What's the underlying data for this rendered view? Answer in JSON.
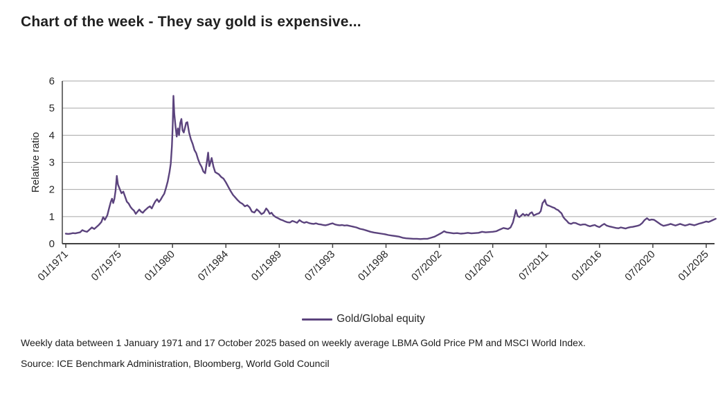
{
  "title": "Chart of the week - They say gold is expensive...",
  "legend": {
    "label": "Gold/Global equity"
  },
  "footnotes": {
    "line1": "Weekly data between 1 January 1971 and 17 October 2025 based on weekly average LBMA Gold Price PM and MSCI World Index.",
    "line2": "Source: ICE Benchmark Administration, Bloomberg, World Gold Council"
  },
  "colors": {
    "line": "#5b437d",
    "grid": "#a6a6a6",
    "axis": "#404040",
    "text": "#262626"
  },
  "chart_data": {
    "type": "line",
    "title": "Chart of the week - They say gold is expensive...",
    "xlabel": "",
    "ylabel": "Relative ratio",
    "ylim": [
      0,
      6
    ],
    "yticks": [
      0,
      1,
      2,
      3,
      4,
      5,
      6
    ],
    "xlim": [
      1971.0,
      2025.9
    ],
    "grid": "horizontal-only",
    "legend_position": "bottom-center",
    "x_ticks": [
      {
        "pos": 1971.0,
        "label": "01/1971"
      },
      {
        "pos": 1975.5,
        "label": "07/1975"
      },
      {
        "pos": 1980.0,
        "label": "01/1980"
      },
      {
        "pos": 1984.5,
        "label": "07/1984"
      },
      {
        "pos": 1989.0,
        "label": "01/1989"
      },
      {
        "pos": 1993.5,
        "label": "07/1993"
      },
      {
        "pos": 1998.0,
        "label": "01/1998"
      },
      {
        "pos": 2002.5,
        "label": "07/2002"
      },
      {
        "pos": 2007.0,
        "label": "01/2007"
      },
      {
        "pos": 2011.5,
        "label": "07/2011"
      },
      {
        "pos": 2016.0,
        "label": "01/2016"
      },
      {
        "pos": 2020.5,
        "label": "07/2020"
      },
      {
        "pos": 2025.0,
        "label": "01/2025"
      }
    ],
    "series": [
      {
        "name": "Gold/Global equity",
        "points": [
          [
            1971.0,
            0.37
          ],
          [
            1971.2,
            0.36
          ],
          [
            1971.4,
            0.37
          ],
          [
            1971.6,
            0.39
          ],
          [
            1971.8,
            0.38
          ],
          [
            1972.0,
            0.4
          ],
          [
            1972.2,
            0.42
          ],
          [
            1972.4,
            0.5
          ],
          [
            1972.6,
            0.46
          ],
          [
            1972.8,
            0.44
          ],
          [
            1973.0,
            0.52
          ],
          [
            1973.2,
            0.6
          ],
          [
            1973.4,
            0.54
          ],
          [
            1973.6,
            0.62
          ],
          [
            1973.8,
            0.7
          ],
          [
            1974.0,
            0.8
          ],
          [
            1974.15,
            0.98
          ],
          [
            1974.3,
            0.88
          ],
          [
            1974.5,
            1.05
          ],
          [
            1974.65,
            1.3
          ],
          [
            1974.8,
            1.55
          ],
          [
            1974.9,
            1.66
          ],
          [
            1975.0,
            1.5
          ],
          [
            1975.1,
            1.65
          ],
          [
            1975.2,
            1.95
          ],
          [
            1975.3,
            2.5
          ],
          [
            1975.4,
            2.18
          ],
          [
            1975.55,
            2.02
          ],
          [
            1975.7,
            1.86
          ],
          [
            1975.85,
            1.92
          ],
          [
            1976.0,
            1.74
          ],
          [
            1976.15,
            1.55
          ],
          [
            1976.3,
            1.48
          ],
          [
            1976.45,
            1.36
          ],
          [
            1976.6,
            1.28
          ],
          [
            1976.75,
            1.22
          ],
          [
            1976.9,
            1.1
          ],
          [
            1977.05,
            1.18
          ],
          [
            1977.2,
            1.26
          ],
          [
            1977.35,
            1.18
          ],
          [
            1977.5,
            1.14
          ],
          [
            1977.65,
            1.22
          ],
          [
            1977.8,
            1.28
          ],
          [
            1977.95,
            1.34
          ],
          [
            1978.1,
            1.38
          ],
          [
            1978.25,
            1.3
          ],
          [
            1978.4,
            1.44
          ],
          [
            1978.55,
            1.56
          ],
          [
            1978.7,
            1.64
          ],
          [
            1978.85,
            1.54
          ],
          [
            1979.0,
            1.62
          ],
          [
            1979.15,
            1.74
          ],
          [
            1979.3,
            1.84
          ],
          [
            1979.45,
            2.05
          ],
          [
            1979.6,
            2.3
          ],
          [
            1979.75,
            2.65
          ],
          [
            1979.85,
            2.95
          ],
          [
            1979.95,
            3.6
          ],
          [
            1980.02,
            4.4
          ],
          [
            1980.08,
            5.45
          ],
          [
            1980.15,
            4.8
          ],
          [
            1980.25,
            4.35
          ],
          [
            1980.35,
            3.95
          ],
          [
            1980.45,
            4.25
          ],
          [
            1980.55,
            4.0
          ],
          [
            1980.65,
            4.45
          ],
          [
            1980.75,
            4.6
          ],
          [
            1980.85,
            4.18
          ],
          [
            1980.95,
            4.1
          ],
          [
            1981.05,
            4.28
          ],
          [
            1981.15,
            4.46
          ],
          [
            1981.25,
            4.48
          ],
          [
            1981.4,
            4.1
          ],
          [
            1981.55,
            3.85
          ],
          [
            1981.7,
            3.68
          ],
          [
            1981.85,
            3.45
          ],
          [
            1982.0,
            3.34
          ],
          [
            1982.15,
            3.12
          ],
          [
            1982.3,
            2.95
          ],
          [
            1982.45,
            2.84
          ],
          [
            1982.6,
            2.66
          ],
          [
            1982.75,
            2.6
          ],
          [
            1982.9,
            3.02
          ],
          [
            1983.0,
            3.36
          ],
          [
            1983.1,
            2.86
          ],
          [
            1983.2,
            3.0
          ],
          [
            1983.3,
            3.16
          ],
          [
            1983.45,
            2.84
          ],
          [
            1983.6,
            2.64
          ],
          [
            1983.75,
            2.6
          ],
          [
            1983.9,
            2.56
          ],
          [
            1984.1,
            2.46
          ],
          [
            1984.3,
            2.4
          ],
          [
            1984.5,
            2.26
          ],
          [
            1984.7,
            2.1
          ],
          [
            1984.9,
            1.94
          ],
          [
            1985.1,
            1.8
          ],
          [
            1985.3,
            1.7
          ],
          [
            1985.5,
            1.6
          ],
          [
            1985.7,
            1.52
          ],
          [
            1985.9,
            1.47
          ],
          [
            1986.1,
            1.38
          ],
          [
            1986.3,
            1.42
          ],
          [
            1986.5,
            1.34
          ],
          [
            1986.7,
            1.18
          ],
          [
            1986.9,
            1.15
          ],
          [
            1987.1,
            1.27
          ],
          [
            1987.3,
            1.19
          ],
          [
            1987.5,
            1.09
          ],
          [
            1987.7,
            1.14
          ],
          [
            1987.9,
            1.3
          ],
          [
            1988.05,
            1.22
          ],
          [
            1988.2,
            1.1
          ],
          [
            1988.35,
            1.14
          ],
          [
            1988.5,
            1.05
          ],
          [
            1988.7,
            0.98
          ],
          [
            1988.9,
            0.94
          ],
          [
            1989.1,
            0.89
          ],
          [
            1989.3,
            0.86
          ],
          [
            1989.5,
            0.82
          ],
          [
            1989.7,
            0.79
          ],
          [
            1989.9,
            0.78
          ],
          [
            1990.1,
            0.84
          ],
          [
            1990.3,
            0.81
          ],
          [
            1990.5,
            0.77
          ],
          [
            1990.7,
            0.87
          ],
          [
            1990.9,
            0.81
          ],
          [
            1991.1,
            0.77
          ],
          [
            1991.3,
            0.8
          ],
          [
            1991.5,
            0.76
          ],
          [
            1991.7,
            0.74
          ],
          [
            1991.9,
            0.73
          ],
          [
            1992.1,
            0.75
          ],
          [
            1992.3,
            0.72
          ],
          [
            1992.5,
            0.71
          ],
          [
            1992.7,
            0.69
          ],
          [
            1992.9,
            0.68
          ],
          [
            1993.1,
            0.7
          ],
          [
            1993.3,
            0.73
          ],
          [
            1993.5,
            0.75
          ],
          [
            1993.7,
            0.71
          ],
          [
            1993.9,
            0.69
          ],
          [
            1994.1,
            0.68
          ],
          [
            1994.3,
            0.69
          ],
          [
            1994.5,
            0.67
          ],
          [
            1994.7,
            0.68
          ],
          [
            1994.9,
            0.66
          ],
          [
            1995.2,
            0.63
          ],
          [
            1995.5,
            0.6
          ],
          [
            1995.8,
            0.55
          ],
          [
            1996.1,
            0.52
          ],
          [
            1996.4,
            0.48
          ],
          [
            1996.7,
            0.44
          ],
          [
            1997.0,
            0.41
          ],
          [
            1997.3,
            0.39
          ],
          [
            1997.6,
            0.37
          ],
          [
            1997.9,
            0.35
          ],
          [
            1998.2,
            0.32
          ],
          [
            1998.5,
            0.3
          ],
          [
            1998.8,
            0.28
          ],
          [
            1999.1,
            0.26
          ],
          [
            1999.4,
            0.22
          ],
          [
            1999.7,
            0.2
          ],
          [
            2000.0,
            0.19
          ],
          [
            2000.3,
            0.18
          ],
          [
            2000.6,
            0.18
          ],
          [
            2000.9,
            0.17
          ],
          [
            2001.2,
            0.18
          ],
          [
            2001.5,
            0.18
          ],
          [
            2001.8,
            0.22
          ],
          [
            2002.1,
            0.26
          ],
          [
            2002.4,
            0.33
          ],
          [
            2002.7,
            0.4
          ],
          [
            2002.9,
            0.46
          ],
          [
            2003.1,
            0.42
          ],
          [
            2003.4,
            0.4
          ],
          [
            2003.7,
            0.38
          ],
          [
            2004.0,
            0.39
          ],
          [
            2004.3,
            0.37
          ],
          [
            2004.6,
            0.38
          ],
          [
            2004.9,
            0.4
          ],
          [
            2005.2,
            0.38
          ],
          [
            2005.5,
            0.39
          ],
          [
            2005.8,
            0.4
          ],
          [
            2006.1,
            0.44
          ],
          [
            2006.4,
            0.42
          ],
          [
            2006.7,
            0.43
          ],
          [
            2007.0,
            0.44
          ],
          [
            2007.3,
            0.46
          ],
          [
            2007.6,
            0.52
          ],
          [
            2007.9,
            0.58
          ],
          [
            2008.1,
            0.56
          ],
          [
            2008.3,
            0.54
          ],
          [
            2008.5,
            0.6
          ],
          [
            2008.7,
            0.78
          ],
          [
            2008.85,
            1.05
          ],
          [
            2008.95,
            1.24
          ],
          [
            2009.1,
            1.02
          ],
          [
            2009.25,
            0.98
          ],
          [
            2009.4,
            1.04
          ],
          [
            2009.55,
            1.1
          ],
          [
            2009.7,
            1.04
          ],
          [
            2009.85,
            1.08
          ],
          [
            2010.0,
            1.04
          ],
          [
            2010.15,
            1.12
          ],
          [
            2010.3,
            1.16
          ],
          [
            2010.45,
            1.04
          ],
          [
            2010.6,
            1.07
          ],
          [
            2010.75,
            1.1
          ],
          [
            2010.9,
            1.12
          ],
          [
            2011.05,
            1.2
          ],
          [
            2011.2,
            1.5
          ],
          [
            2011.3,
            1.55
          ],
          [
            2011.4,
            1.62
          ],
          [
            2011.5,
            1.47
          ],
          [
            2011.6,
            1.42
          ],
          [
            2011.75,
            1.4
          ],
          [
            2011.9,
            1.37
          ],
          [
            2012.05,
            1.34
          ],
          [
            2012.2,
            1.32
          ],
          [
            2012.35,
            1.27
          ],
          [
            2012.5,
            1.24
          ],
          [
            2012.65,
            1.18
          ],
          [
            2012.8,
            1.12
          ],
          [
            2012.95,
            0.98
          ],
          [
            2013.1,
            0.9
          ],
          [
            2013.25,
            0.84
          ],
          [
            2013.4,
            0.76
          ],
          [
            2013.6,
            0.73
          ],
          [
            2013.8,
            0.77
          ],
          [
            2014.0,
            0.76
          ],
          [
            2014.2,
            0.72
          ],
          [
            2014.4,
            0.69
          ],
          [
            2014.6,
            0.71
          ],
          [
            2014.8,
            0.71
          ],
          [
            2015.0,
            0.67
          ],
          [
            2015.2,
            0.64
          ],
          [
            2015.4,
            0.67
          ],
          [
            2015.6,
            0.69
          ],
          [
            2015.8,
            0.64
          ],
          [
            2016.0,
            0.61
          ],
          [
            2016.2,
            0.68
          ],
          [
            2016.4,
            0.73
          ],
          [
            2016.6,
            0.67
          ],
          [
            2016.8,
            0.64
          ],
          [
            2017.0,
            0.62
          ],
          [
            2017.2,
            0.6
          ],
          [
            2017.4,
            0.58
          ],
          [
            2017.6,
            0.57
          ],
          [
            2017.8,
            0.6
          ],
          [
            2018.0,
            0.58
          ],
          [
            2018.2,
            0.56
          ],
          [
            2018.4,
            0.59
          ],
          [
            2018.6,
            0.61
          ],
          [
            2018.8,
            0.62
          ],
          [
            2019.0,
            0.64
          ],
          [
            2019.2,
            0.66
          ],
          [
            2019.4,
            0.69
          ],
          [
            2019.6,
            0.76
          ],
          [
            2019.8,
            0.87
          ],
          [
            2020.0,
            0.94
          ],
          [
            2020.2,
            0.87
          ],
          [
            2020.4,
            0.89
          ],
          [
            2020.6,
            0.88
          ],
          [
            2020.8,
            0.82
          ],
          [
            2021.0,
            0.76
          ],
          [
            2021.2,
            0.7
          ],
          [
            2021.4,
            0.66
          ],
          [
            2021.6,
            0.68
          ],
          [
            2021.8,
            0.7
          ],
          [
            2022.0,
            0.73
          ],
          [
            2022.2,
            0.7
          ],
          [
            2022.4,
            0.67
          ],
          [
            2022.6,
            0.7
          ],
          [
            2022.8,
            0.73
          ],
          [
            2023.0,
            0.7
          ],
          [
            2023.2,
            0.67
          ],
          [
            2023.4,
            0.69
          ],
          [
            2023.6,
            0.72
          ],
          [
            2023.8,
            0.7
          ],
          [
            2024.0,
            0.68
          ],
          [
            2024.2,
            0.71
          ],
          [
            2024.4,
            0.74
          ],
          [
            2024.6,
            0.76
          ],
          [
            2024.8,
            0.79
          ],
          [
            2025.0,
            0.82
          ],
          [
            2025.2,
            0.8
          ],
          [
            2025.4,
            0.84
          ],
          [
            2025.6,
            0.88
          ],
          [
            2025.8,
            0.92
          ]
        ]
      }
    ]
  }
}
